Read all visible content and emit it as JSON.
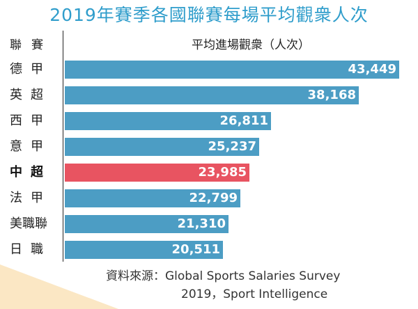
{
  "title": "2019年賽季各國聯賽每場平均觀衆人次",
  "header": {
    "league_label": "聯賽",
    "value_label": "平均進場觀衆（人次）"
  },
  "chart_data": {
    "type": "bar",
    "orientation": "horizontal",
    "title": "2019年賽季各國聯賽每場平均觀衆人次",
    "xlabel": "平均進場觀衆（人次）",
    "ylabel": "聯賽",
    "categories": [
      "德甲",
      "英超",
      "西甲",
      "意甲",
      "中超",
      "法甲",
      "美職聯",
      "日職"
    ],
    "values": [
      43449,
      38168,
      26811,
      25237,
      23985,
      22799,
      21310,
      20511
    ],
    "value_labels": [
      "43,449",
      "38,168",
      "26,811",
      "25,237",
      "23,985",
      "22,799",
      "21,310",
      "20,511"
    ],
    "highlight_category": "中超",
    "xlim": [
      0,
      43449
    ],
    "grid": false,
    "legend": "none",
    "colors": {
      "bar": "#4c9dc4",
      "highlight": "#e85461",
      "title": "#2f9dcb"
    }
  },
  "source": {
    "line1": "資料來源：Global Sports Salaries Survey",
    "line2": "2019，Sport Intelligence"
  }
}
